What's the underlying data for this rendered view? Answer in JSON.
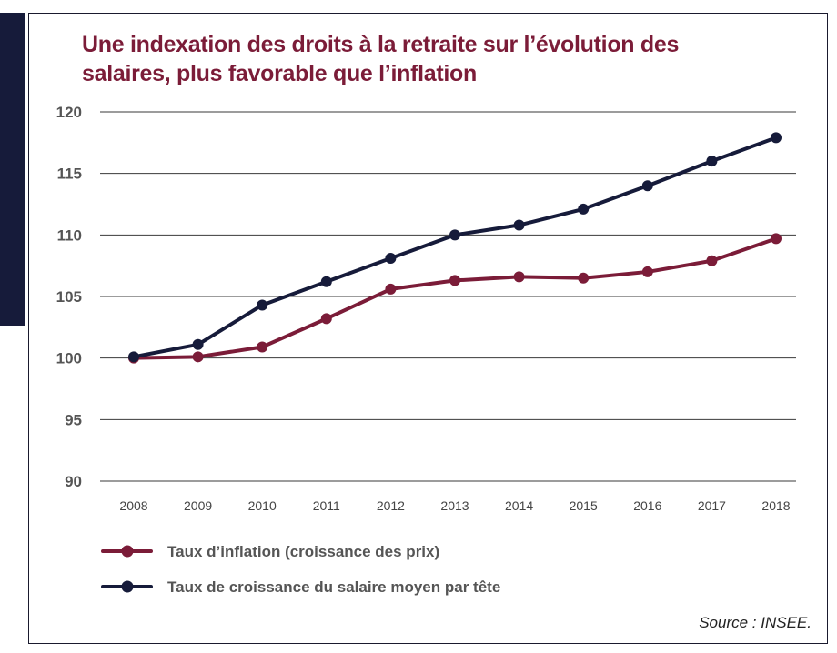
{
  "chart_data": {
    "type": "line",
    "title": "Une indexation des droits à la retraite sur l’évolution des salaires, plus favorable que l’inflation",
    "x": [
      "2008",
      "2009",
      "2010",
      "2011",
      "2012",
      "2013",
      "2014",
      "2015",
      "2016",
      "2017",
      "2018"
    ],
    "yticks": [
      "120",
      "115",
      "110",
      "105",
      "100",
      "95",
      "90"
    ],
    "ylim": [
      90,
      120
    ],
    "grid": true,
    "series": [
      {
        "name": "Taux d’inflation (croissance des prix)",
        "color": "#7b1c38",
        "values": [
          100.0,
          100.1,
          100.9,
          103.2,
          105.6,
          106.3,
          106.6,
          106.5,
          107.0,
          107.9,
          109.7
        ]
      },
      {
        "name": "Taux de croissance du salaire moyen par tête",
        "color": "#161b3a",
        "values": [
          100.1,
          101.1,
          104.3,
          106.2,
          108.1,
          110.0,
          110.8,
          112.1,
          114.0,
          116.0,
          117.9
        ]
      }
    ],
    "source": "Source : INSEE."
  }
}
